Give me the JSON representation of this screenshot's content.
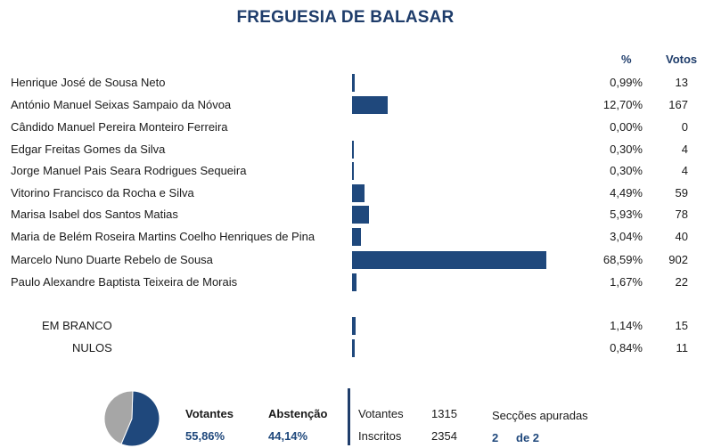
{
  "title": "FREGUESIA DE BALASAR",
  "headers": {
    "pct": "%",
    "votes": "Votos"
  },
  "chart_data": {
    "type": "bar",
    "orientation": "horizontal",
    "title": "FREGUESIA DE BALASAR",
    "categories": [
      "Henrique José de Sousa Neto",
      "António Manuel Seixas Sampaio da Nóvoa",
      "Cândido Manuel Pereira Monteiro Ferreira",
      "Edgar Freitas Gomes da Silva",
      "Jorge Manuel Pais Seara Rodrigues Sequeira",
      "Vitorino Francisco da Rocha e Silva",
      "Marisa Isabel dos Santos Matias",
      "Maria de Belém Roseira Martins Coelho Henriques de Pina",
      "Marcelo Nuno Duarte Rebelo de Sousa",
      "Paulo Alexandre Baptista Teixeira de Morais"
    ],
    "percent_labels": [
      "0,99%",
      "12,70%",
      "0,00%",
      "0,30%",
      "0,30%",
      "4,49%",
      "5,93%",
      "3,04%",
      "68,59%",
      "1,67%"
    ],
    "values": [
      0.99,
      12.7,
      0.0,
      0.3,
      0.3,
      4.49,
      5.93,
      3.04,
      68.59,
      1.67
    ],
    "votes": [
      "13",
      "167",
      "0",
      "4",
      "4",
      "59",
      "78",
      "40",
      "902",
      "22"
    ],
    "special": [
      {
        "label": "EM BRANCO",
        "pct_label": "1,14%",
        "value": 1.14,
        "votes": "15"
      },
      {
        "label": "NULOS",
        "pct_label": "0,84%",
        "value": 0.84,
        "votes": "11"
      }
    ],
    "xlim": [
      0,
      100
    ],
    "color": "#1f487c"
  },
  "pie_data": {
    "type": "pie",
    "values": [
      55.86,
      44.14
    ],
    "colors": [
      "#1f487c",
      "#a6a6a6"
    ]
  },
  "summary": {
    "votantes_label": "Votantes",
    "votantes_pct": "55,86%",
    "abstencao_label": "Abstenção",
    "abstencao_pct": "44,14%",
    "votantes_count_label": "Votantes",
    "votantes_count": "1315",
    "inscritos_label": "Inscritos",
    "inscritos_count": "2354",
    "seccoes_label": "Secções apuradas",
    "seccoes_done": "2",
    "seccoes_total": "de 2"
  }
}
